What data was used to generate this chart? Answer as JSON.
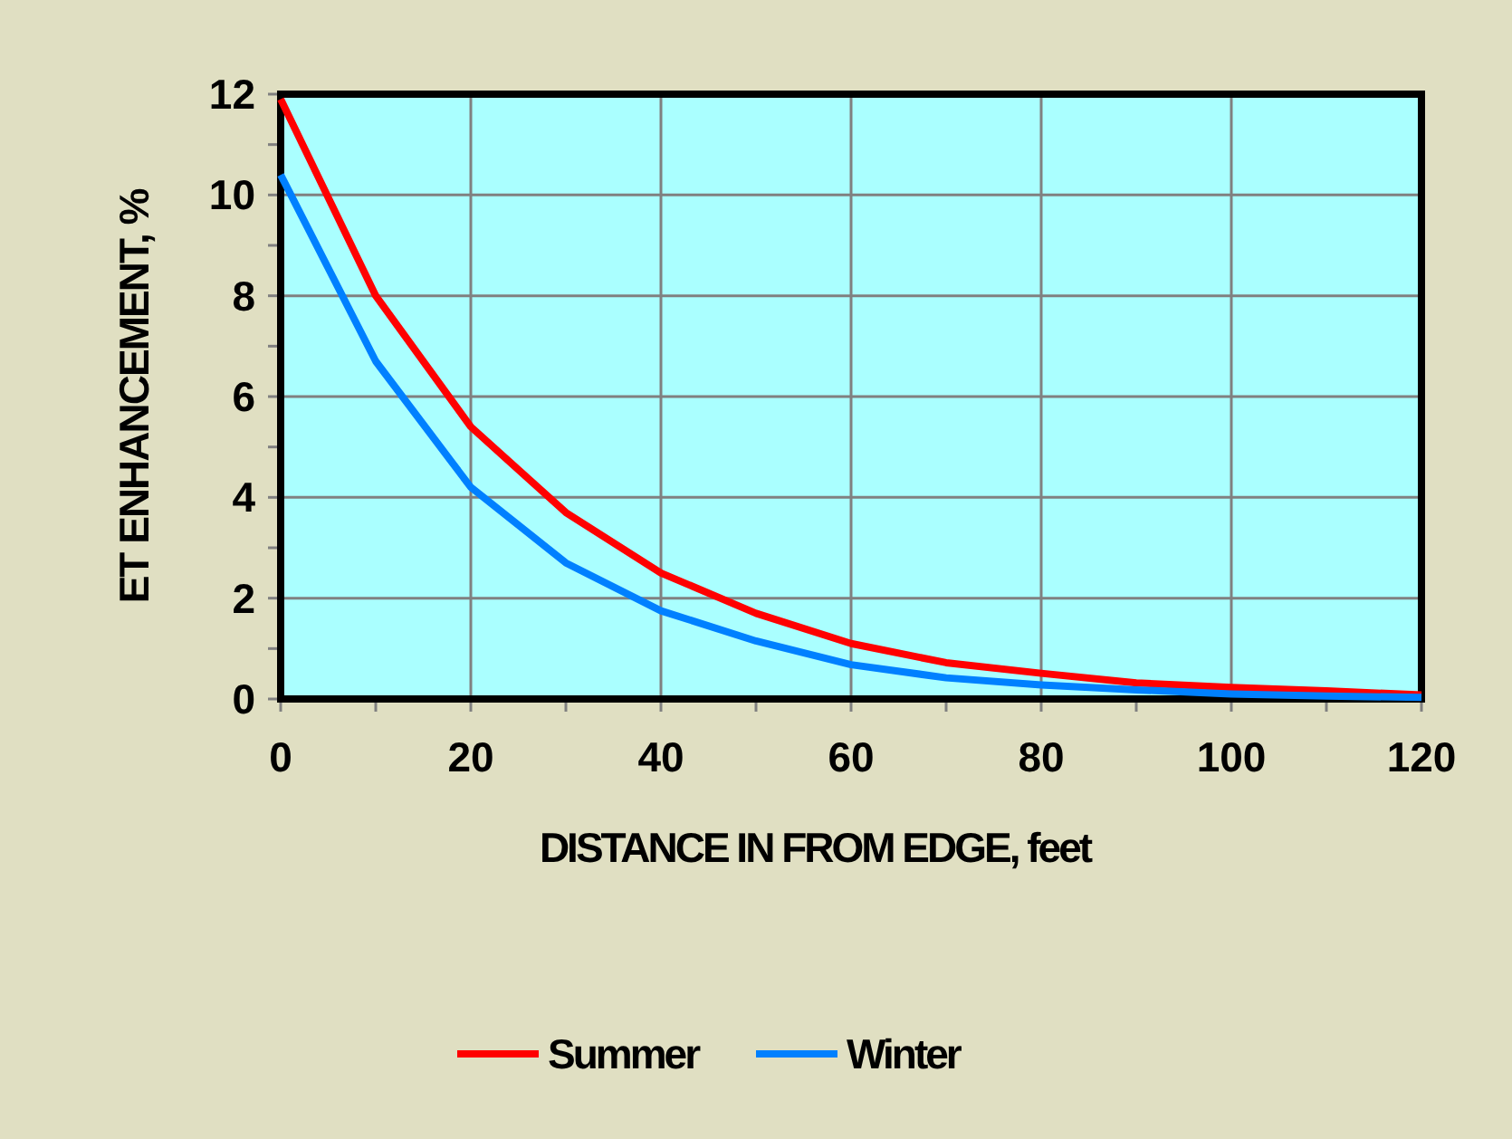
{
  "chart_data": {
    "type": "line",
    "xlabel": "DISTANCE IN FROM EDGE, feet",
    "ylabel": "ET ENHANCEMENT, %",
    "x": [
      0,
      10,
      20,
      30,
      40,
      50,
      60,
      70,
      80,
      90,
      100,
      110,
      120
    ],
    "series": [
      {
        "name": "Summer",
        "color": "#ff0000",
        "values": [
          11.9,
          8.0,
          5.4,
          3.7,
          2.5,
          1.7,
          1.1,
          0.72,
          0.51,
          0.32,
          0.23,
          0.16,
          0.08
        ]
      },
      {
        "name": "Winter",
        "color": "#0080ff",
        "values": [
          10.4,
          6.7,
          4.2,
          2.7,
          1.75,
          1.15,
          0.68,
          0.42,
          0.28,
          0.18,
          0.1,
          0.06,
          0.03
        ]
      }
    ],
    "xlim": [
      0,
      120
    ],
    "xticks": [
      0,
      20,
      40,
      60,
      80,
      100,
      120
    ],
    "ylim": [
      0,
      12
    ],
    "yticks": [
      0,
      2,
      4,
      6,
      8,
      10,
      12
    ],
    "grid": true,
    "legend": "bottom",
    "marker": "none",
    "line_style": "solid"
  }
}
